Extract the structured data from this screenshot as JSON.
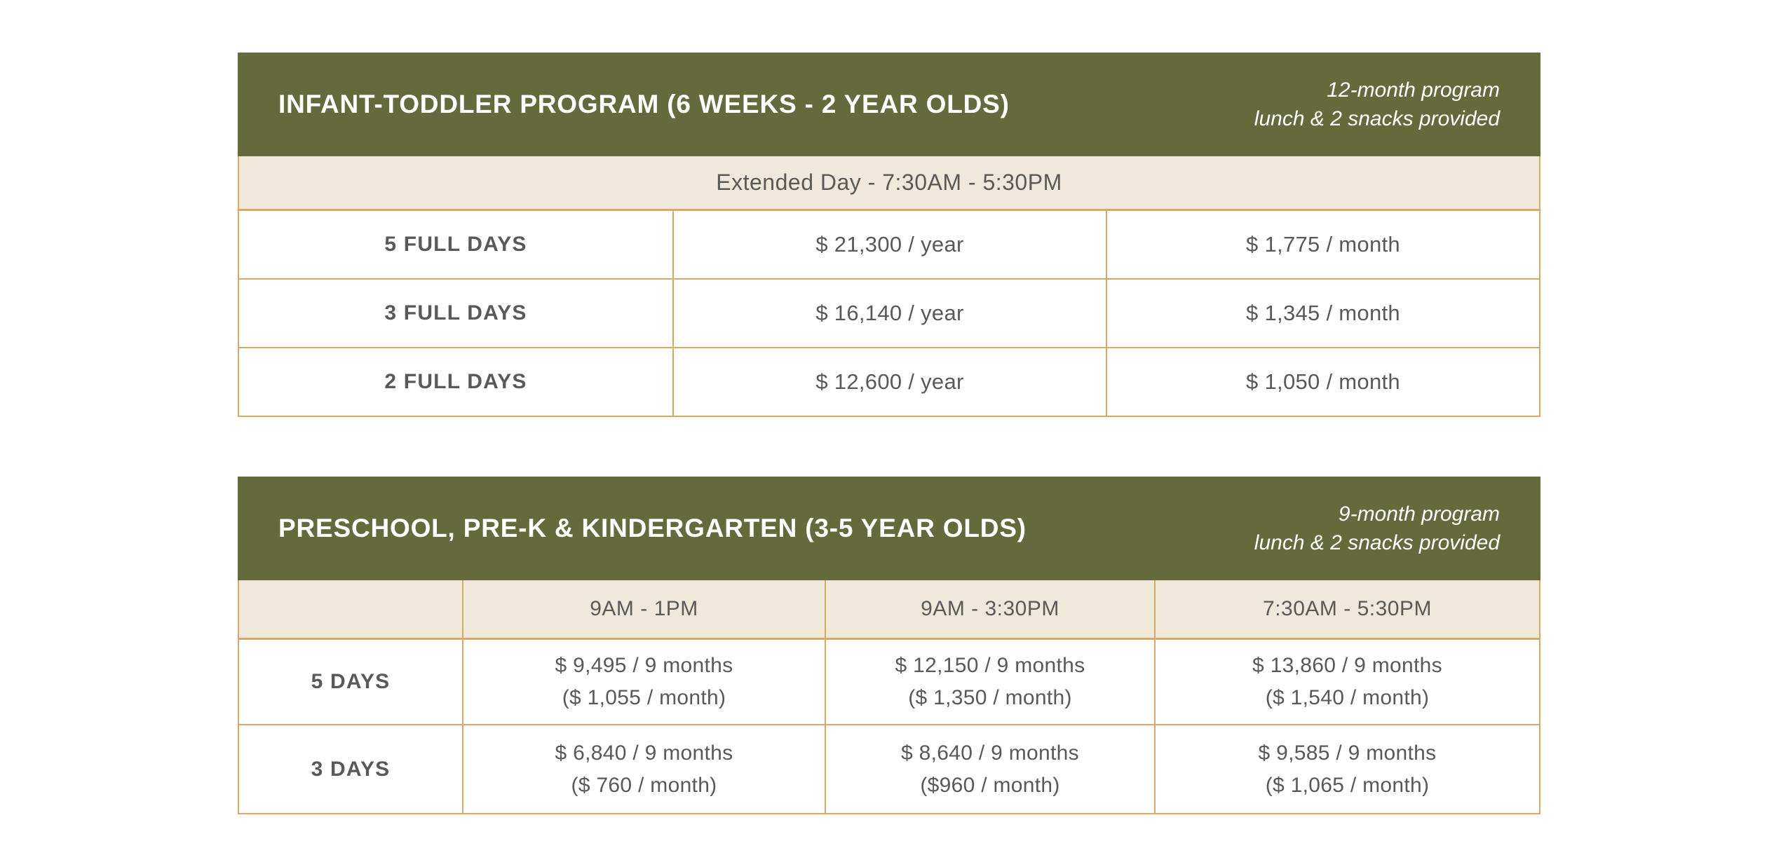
{
  "colors": {
    "olive": "#656a3d",
    "beige": "#f0e8da",
    "border": "#d9a865",
    "text": "#58595b",
    "header_text": "#ffffff"
  },
  "infant_toddler": {
    "title": "INFANT-TODDLER PROGRAM (6 WEEKS - 2 YEAR OLDS)",
    "note_line1": "12-month program",
    "note_line2": "lunch & 2 snacks provided",
    "band": "Extended Day - 7:30AM - 5:30PM",
    "rows": [
      {
        "label": "5 FULL DAYS",
        "year": "$ 21,300 / year",
        "month": "$ 1,775 / month"
      },
      {
        "label": "3 FULL DAYS",
        "year": "$ 16,140 / year",
        "month": "$ 1,345 / month"
      },
      {
        "label": "2 FULL DAYS",
        "year": "$ 12,600 / year",
        "month": "$ 1,050 / month"
      }
    ]
  },
  "preschool": {
    "title": "PRESCHOOL, PRE-K & KINDERGARTEN (3-5 YEAR OLDS)",
    "note_line1": "9-month program",
    "note_line2": "lunch & 2 snacks provided",
    "column_headers": [
      "9AM - 1PM",
      "9AM - 3:30PM",
      "7:30AM - 5:30PM"
    ],
    "rows": [
      {
        "label": "5 DAYS",
        "cells": [
          {
            "line1": "$ 9,495 / 9 months",
            "line2": "($ 1,055 / month)"
          },
          {
            "line1": "$ 12,150 / 9 months",
            "line2": "($ 1,350 / month)"
          },
          {
            "line1": "$ 13,860 / 9 months",
            "line2": "($ 1,540 / month)"
          }
        ]
      },
      {
        "label": "3 DAYS",
        "cells": [
          {
            "line1": "$ 6,840 / 9 months",
            "line2": "($ 760 / month)"
          },
          {
            "line1": "$ 8,640 / 9 months",
            "line2": "($960 / month)"
          },
          {
            "line1": "$ 9,585 / 9 months",
            "line2": "($ 1,065 / month)"
          }
        ]
      }
    ]
  }
}
